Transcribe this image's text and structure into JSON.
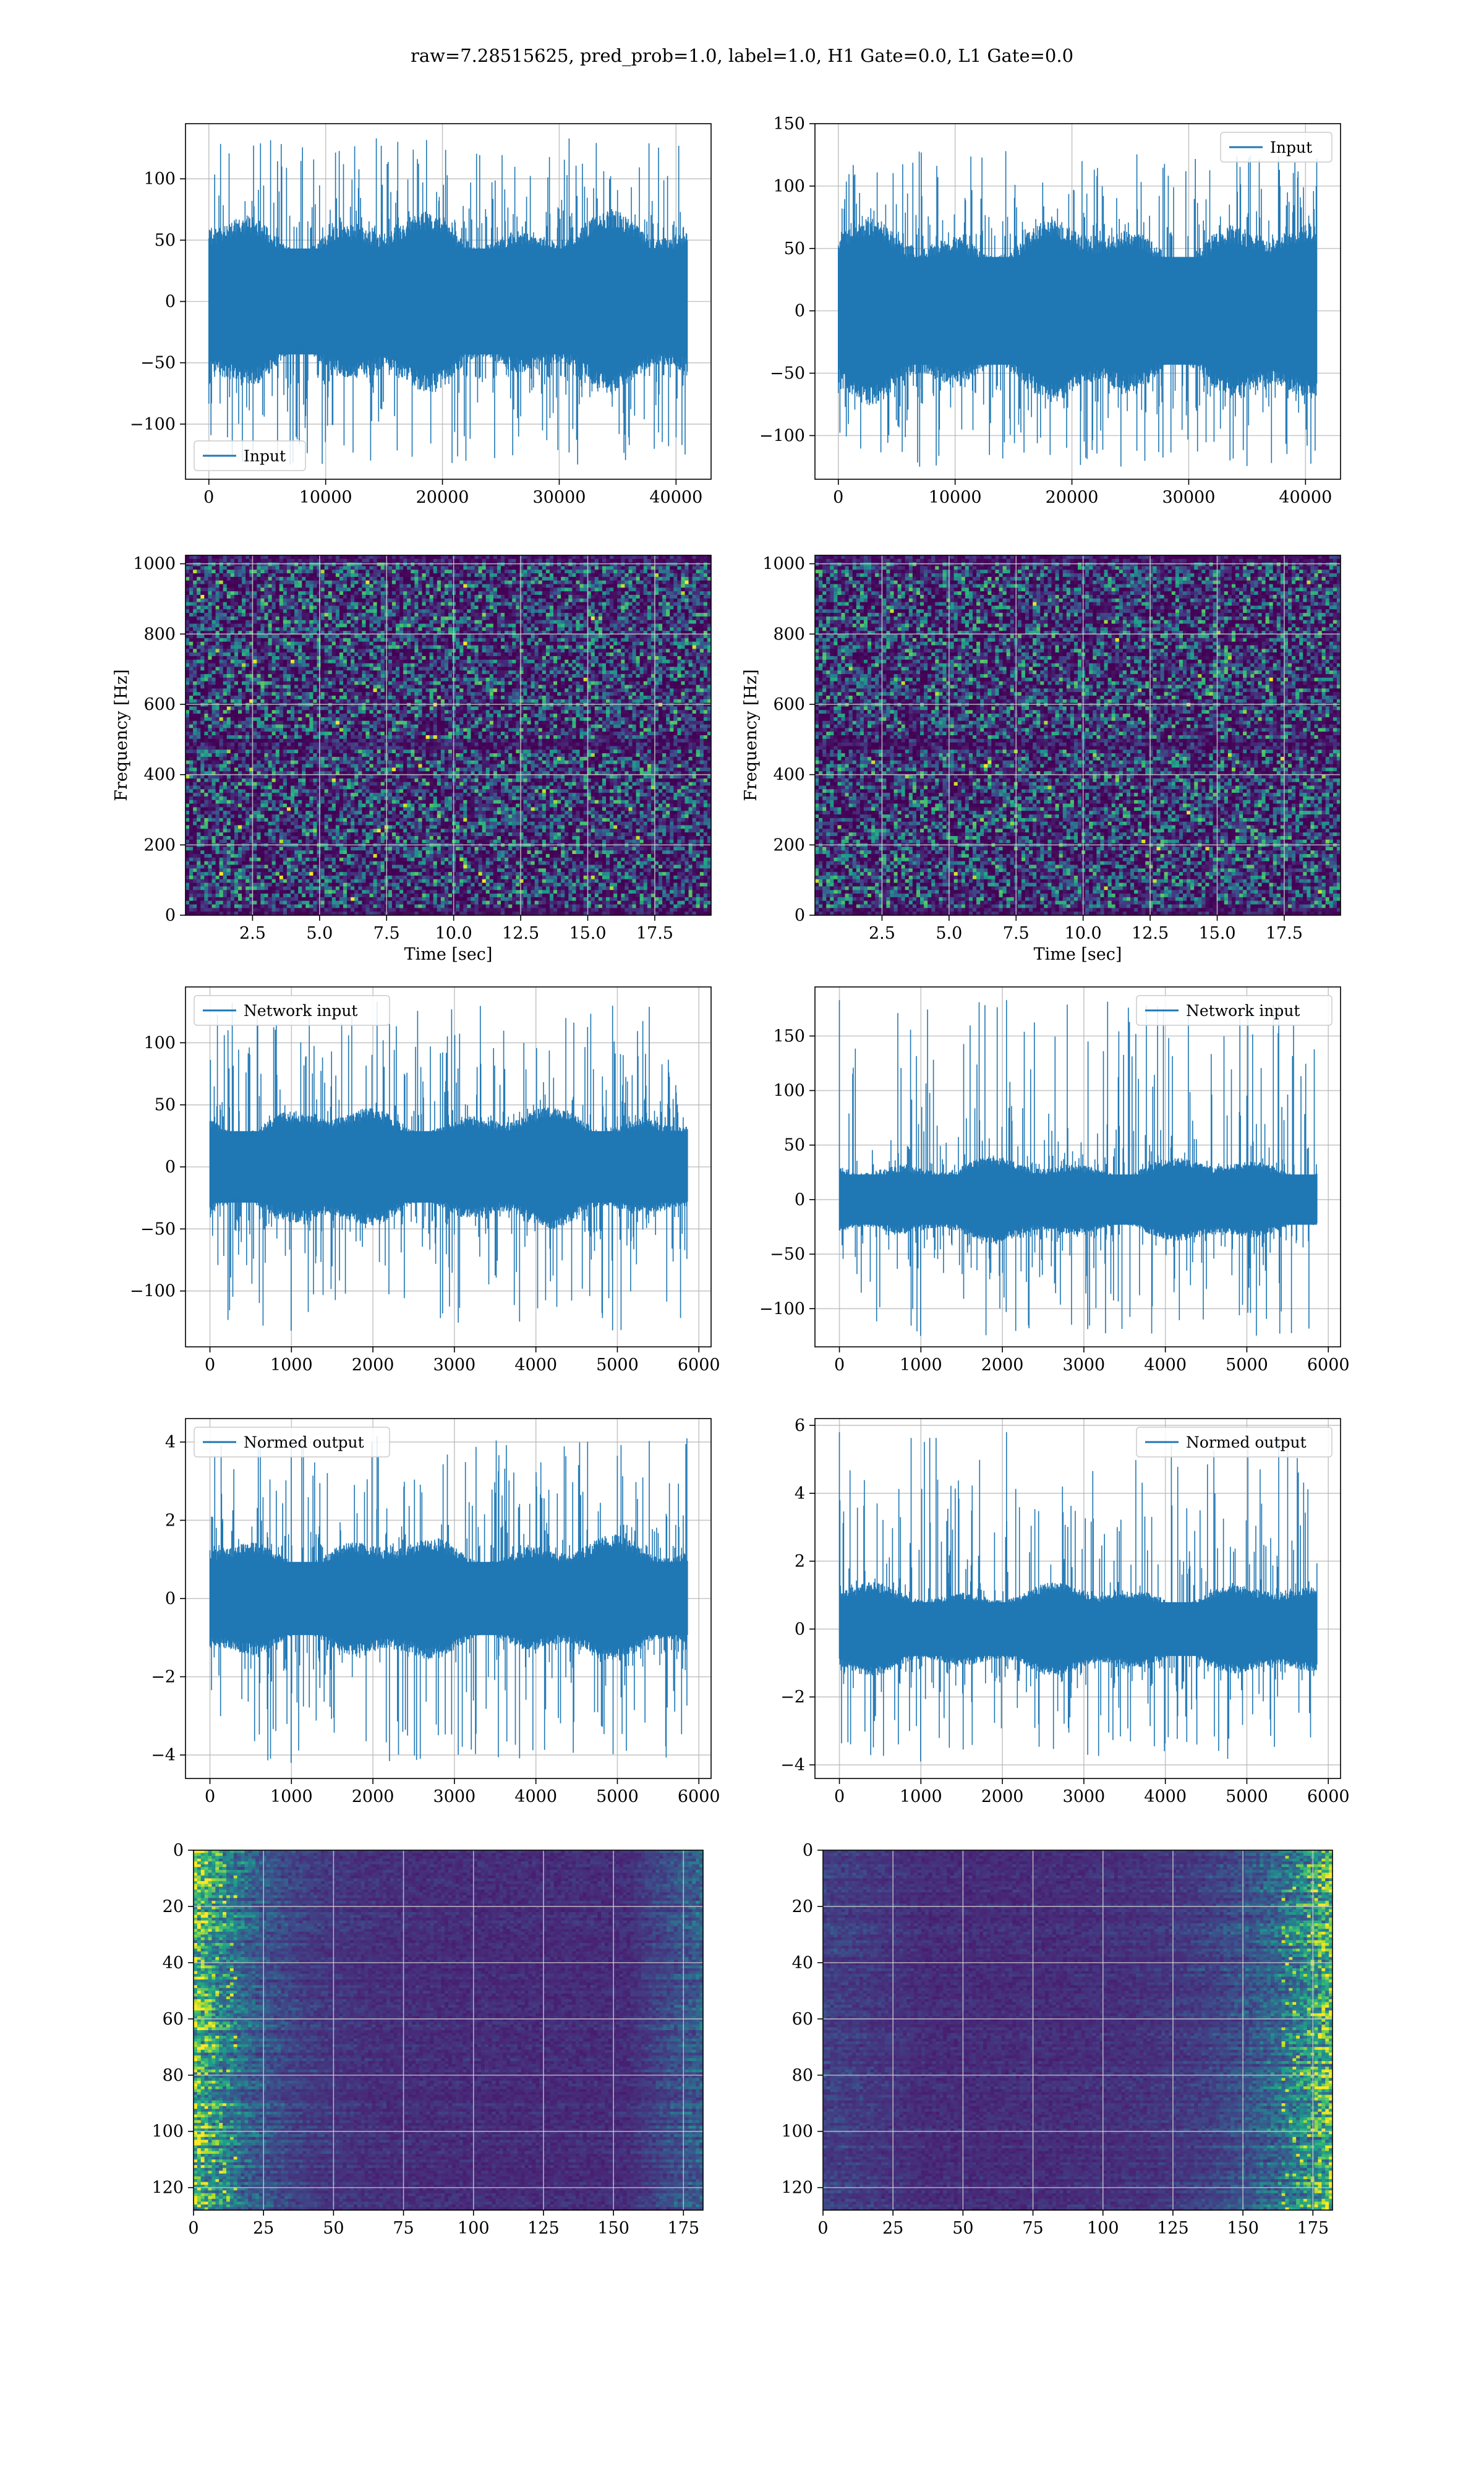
{
  "figure": {
    "suptitle": "raw=7.28515625, pred_prob=1.0, label=1.0, H1 Gate=0.0, L1 Gate=0.0"
  },
  "colors": {
    "line": "#1f77b4",
    "grid": "#b0b0b0",
    "viridis_low": "#440154",
    "viridis_mid": "#21918c",
    "viridis_high": "#fde725"
  },
  "chart_data": [
    {
      "id": "p0",
      "type": "line",
      "title": "",
      "xlabel": "",
      "ylabel": "",
      "xlim": [
        -2000,
        43000
      ],
      "ylim": [
        -145,
        145
      ],
      "xticks": [
        0,
        10000,
        20000,
        30000,
        40000
      ],
      "yticks": [
        -100,
        -50,
        0,
        50,
        100
      ],
      "legend": "Input",
      "legend_loc": "lower-left",
      "series": [
        {
          "name": "Input",
          "x_range": [
            0,
            40960
          ],
          "band": [
            -60,
            60
          ],
          "peaks": [
            -133,
            133
          ]
        }
      ]
    },
    {
      "id": "p1",
      "type": "line",
      "title": "",
      "xlabel": "",
      "ylabel": "",
      "xlim": [
        -2000,
        43000
      ],
      "ylim": [
        -135,
        150
      ],
      "xticks": [
        0,
        10000,
        20000,
        30000,
        40000
      ],
      "yticks": [
        -100,
        -50,
        0,
        50,
        100,
        150
      ],
      "legend": "Input",
      "legend_loc": "upper-right",
      "series": [
        {
          "name": "Input",
          "x_range": [
            0,
            40960
          ],
          "band": [
            -60,
            60
          ],
          "peaks": [
            -125,
            128
          ]
        }
      ]
    },
    {
      "id": "p2",
      "type": "heatmap",
      "title": "",
      "xlabel": "Time [sec]",
      "ylabel": "Frequency [Hz]",
      "xlim": [
        0,
        19.6
      ],
      "ylim": [
        0,
        1024
      ],
      "xticks": [
        2.5,
        5.0,
        7.5,
        10.0,
        12.5,
        15.0,
        17.5
      ],
      "xticklabels": [
        "2.5",
        "5.0",
        "7.5",
        "10.0",
        "12.5",
        "15.0",
        "17.5"
      ],
      "yticks": [
        0,
        200,
        400,
        600,
        800,
        1000
      ],
      "colormap": "viridis",
      "y_inverted": false
    },
    {
      "id": "p3",
      "type": "heatmap",
      "title": "",
      "xlabel": "Time [sec]",
      "ylabel": "Frequency [Hz]",
      "xlim": [
        0,
        19.6
      ],
      "ylim": [
        0,
        1024
      ],
      "xticks": [
        2.5,
        5.0,
        7.5,
        10.0,
        12.5,
        15.0,
        17.5
      ],
      "xticklabels": [
        "2.5",
        "5.0",
        "7.5",
        "10.0",
        "12.5",
        "15.0",
        "17.5"
      ],
      "yticks": [
        0,
        200,
        400,
        600,
        800,
        1000
      ],
      "colormap": "viridis",
      "y_inverted": false
    },
    {
      "id": "p4",
      "type": "line",
      "title": "",
      "xlabel": "",
      "ylabel": "",
      "xlim": [
        -300,
        6150
      ],
      "ylim": [
        -145,
        145
      ],
      "xticks": [
        0,
        1000,
        2000,
        3000,
        4000,
        5000,
        6000
      ],
      "yticks": [
        -100,
        -50,
        0,
        50,
        100
      ],
      "legend": "Network input",
      "legend_loc": "upper-left",
      "series": [
        {
          "name": "Network input",
          "x_range": [
            0,
            5860
          ],
          "band": [
            -40,
            40
          ],
          "peaks": [
            -132,
            133
          ]
        }
      ]
    },
    {
      "id": "p5",
      "type": "line",
      "title": "",
      "xlabel": "",
      "ylabel": "",
      "xlim": [
        -300,
        6150
      ],
      "ylim": [
        -135,
        195
      ],
      "xticks": [
        0,
        1000,
        2000,
        3000,
        4000,
        5000,
        6000
      ],
      "yticks": [
        -100,
        -50,
        0,
        50,
        100,
        150
      ],
      "legend": "Network input",
      "legend_loc": "upper-right",
      "series": [
        {
          "name": "Network input",
          "x_range": [
            0,
            5860
          ],
          "band": [
            -32,
            32
          ],
          "peaks": [
            -125,
            183
          ]
        }
      ]
    },
    {
      "id": "p6",
      "type": "line",
      "title": "",
      "xlabel": "",
      "ylabel": "",
      "xlim": [
        -300,
        6150
      ],
      "ylim": [
        -4.6,
        4.6
      ],
      "xticks": [
        0,
        1000,
        2000,
        3000,
        4000,
        5000,
        6000
      ],
      "yticks": [
        -4,
        -2,
        0,
        2,
        4
      ],
      "legend": "Normed output",
      "legend_loc": "upper-left",
      "series": [
        {
          "name": "Normed output",
          "x_range": [
            0,
            5860
          ],
          "band": [
            -1.3,
            1.3
          ],
          "peaks": [
            -4.2,
            4.15
          ]
        }
      ]
    },
    {
      "id": "p7",
      "type": "line",
      "title": "",
      "xlabel": "",
      "ylabel": "",
      "xlim": [
        -300,
        6150
      ],
      "ylim": [
        -4.4,
        6.2
      ],
      "xticks": [
        0,
        1000,
        2000,
        3000,
        4000,
        5000,
        6000
      ],
      "yticks": [
        -4,
        -2,
        0,
        2,
        4,
        6
      ],
      "legend": "Normed output",
      "legend_loc": "upper-right",
      "series": [
        {
          "name": "Normed output",
          "x_range": [
            0,
            5860
          ],
          "band": [
            -1.1,
            1.1
          ],
          "peaks": [
            -3.9,
            5.8
          ]
        }
      ]
    },
    {
      "id": "p8",
      "type": "heatmap",
      "title": "",
      "xlabel": "",
      "ylabel": "",
      "xlim": [
        0,
        182
      ],
      "ylim": [
        128,
        0
      ],
      "xticks": [
        0,
        25,
        50,
        75,
        100,
        125,
        150,
        175
      ],
      "yticks": [
        0,
        20,
        40,
        60,
        80,
        100,
        120
      ],
      "colormap": "viridis",
      "y_inverted": true,
      "bright_side": "left"
    },
    {
      "id": "p9",
      "type": "heatmap",
      "title": "",
      "xlabel": "",
      "ylabel": "",
      "xlim": [
        0,
        182
      ],
      "ylim": [
        128,
        0
      ],
      "xticks": [
        0,
        25,
        50,
        75,
        100,
        125,
        150,
        175
      ],
      "yticks": [
        0,
        20,
        40,
        60,
        80,
        100,
        120
      ],
      "colormap": "viridis",
      "y_inverted": true,
      "bright_side": "right"
    }
  ]
}
